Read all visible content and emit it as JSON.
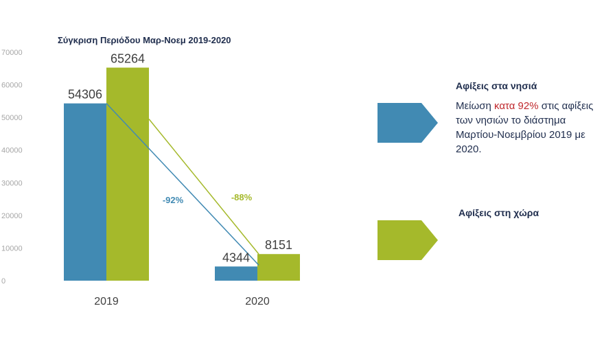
{
  "chart_data": {
    "type": "bar",
    "title": "Σύγκριση Περιόδου Μαρ-Νοεμ 2019-2020",
    "categories": [
      "2019",
      "2020"
    ],
    "series": [
      {
        "name": "Αφίξεις στα νησιά",
        "color": "#418ab3",
        "values": [
          54306,
          4344
        ]
      },
      {
        "name": "Αφίξεις στη χώρα",
        "color": "#a5b92b",
        "values": [
          65264,
          8151
        ]
      }
    ],
    "ylim": [
      0,
      70000
    ],
    "yticks": [
      0,
      10000,
      20000,
      30000,
      40000,
      50000,
      60000,
      70000
    ],
    "changes": [
      {
        "series": "Αφίξεις στα νησιά",
        "label": "-92%",
        "color": "#418ab3"
      },
      {
        "series": "Αφίξεις στη χώρα",
        "label": "-88%",
        "color": "#a5b92b"
      }
    ],
    "xlabel": "",
    "ylabel": ""
  },
  "legend": {
    "islands": {
      "heading": "Αφίξεις στα νησιά",
      "desc_pre": "Μείωση ",
      "desc_highlight": "κατα 92%",
      "desc_post": " στις αφίξεις των νησιών το διάστημα Μαρτίου-Νοεμβρίου 2019 με 2020.",
      "color": "#418ab3",
      "highlight_color": "#c0282d"
    },
    "country": {
      "heading": "Αφίξεις στη χώρα",
      "color": "#a5b92b"
    }
  }
}
